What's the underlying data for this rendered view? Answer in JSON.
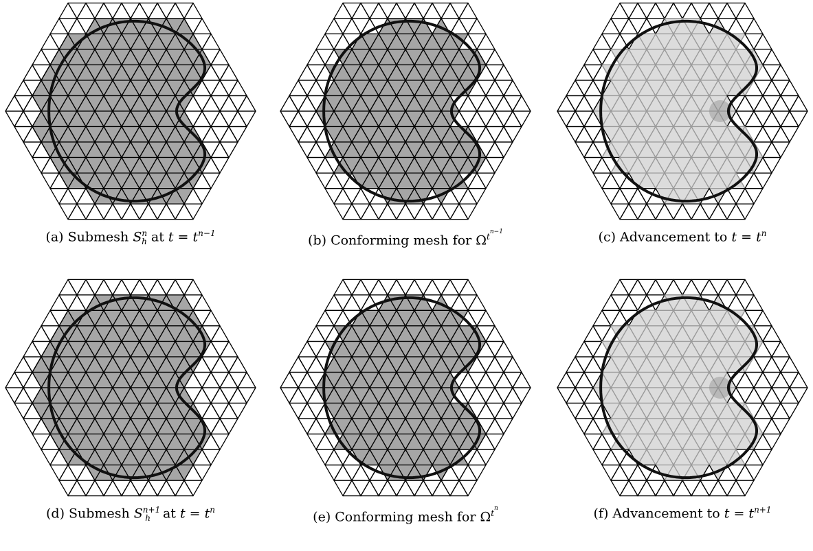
{
  "figure": {
    "panels": [
      {
        "id": "a",
        "caption_prefix": "(a) Submesh",
        "symbol": "S",
        "symbol_sup": "n",
        "symbol_sub": "h",
        "caption_mid": " at ",
        "time_var": "t",
        "time_eq": " = ",
        "time_base": "t",
        "time_sup": "n−1",
        "style": "submesh"
      },
      {
        "id": "b",
        "caption_prefix": "(b) Conforming mesh for",
        "omega": "Ω",
        "omega_sup_base": "t",
        "omega_sup_sup": "n−1",
        "style": "conforming"
      },
      {
        "id": "c",
        "caption_prefix": "(c) Advancement to",
        "time_var": "t",
        "time_eq": " = ",
        "time_base": "t",
        "time_sup": "n",
        "style": "advance"
      },
      {
        "id": "d",
        "caption_prefix": "(d) Submesh",
        "symbol": "S",
        "symbol_sup": "n+1",
        "symbol_sub": "h",
        "caption_mid": " at ",
        "time_var": "t",
        "time_eq": " = ",
        "time_base": "t",
        "time_sup": "n",
        "style": "submesh"
      },
      {
        "id": "e",
        "caption_prefix": "(e) Conforming mesh for",
        "omega": "Ω",
        "omega_sup_base": "t",
        "omega_sup_sup": "n",
        "style": "conforming"
      },
      {
        "id": "f",
        "caption_prefix": "(f) Advancement to",
        "time_var": "t",
        "time_eq": " = ",
        "time_base": "t",
        "time_sup": "n+1",
        "style": "advance"
      }
    ],
    "colors": {
      "dark_fill": "#a6a6a6",
      "light_fill": "#dcdcdc",
      "mesh_line": "#000000",
      "light_mesh_line": "#9a9a9a",
      "curve": "#111111"
    }
  }
}
